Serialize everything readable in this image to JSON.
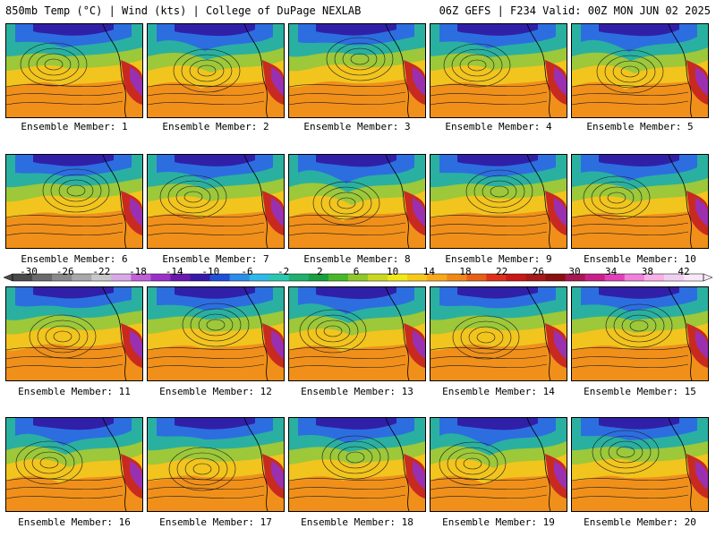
{
  "header": {
    "left": "850mb Temp (°C) | Wind (kts) | College of DuPage NEXLAB",
    "right": "06Z GEFS | F234 Valid: 00Z MON JUN 02 2025"
  },
  "caption_prefix": "Ensemble Member: ",
  "members": [
    1,
    2,
    3,
    4,
    5,
    6,
    7,
    8,
    9,
    10,
    11,
    12,
    13,
    14,
    15,
    16,
    17,
    18,
    19,
    20
  ],
  "colorbar": {
    "labels": [
      "-30",
      "-26",
      "-22",
      "-18",
      "-14",
      "-10",
      "-6",
      "-2",
      "2",
      "6",
      "10",
      "14",
      "18",
      "22",
      "26",
      "30",
      "34",
      "38",
      "42"
    ],
    "colors": [
      "#4a4a4a",
      "#6a6a6a",
      "#8a8a8a",
      "#a8a8a8",
      "#c8c8c8",
      "#d8a8e8",
      "#c060d8",
      "#9a30c8",
      "#6a18b0",
      "#3818a8",
      "#2050d8",
      "#2c8ce8",
      "#30b8e8",
      "#28c8b0",
      "#20b070",
      "#18a040",
      "#48b828",
      "#90c828",
      "#c8d820",
      "#f0e818",
      "#f8c818",
      "#f8a818",
      "#f08818",
      "#e86018",
      "#e03018",
      "#c81818",
      "#a81818",
      "#8a1010",
      "#a81850",
      "#c82088",
      "#e040b8",
      "#f080d8",
      "#f8b0e8",
      "#f0d0f0",
      "#f8e8f8"
    ]
  }
}
